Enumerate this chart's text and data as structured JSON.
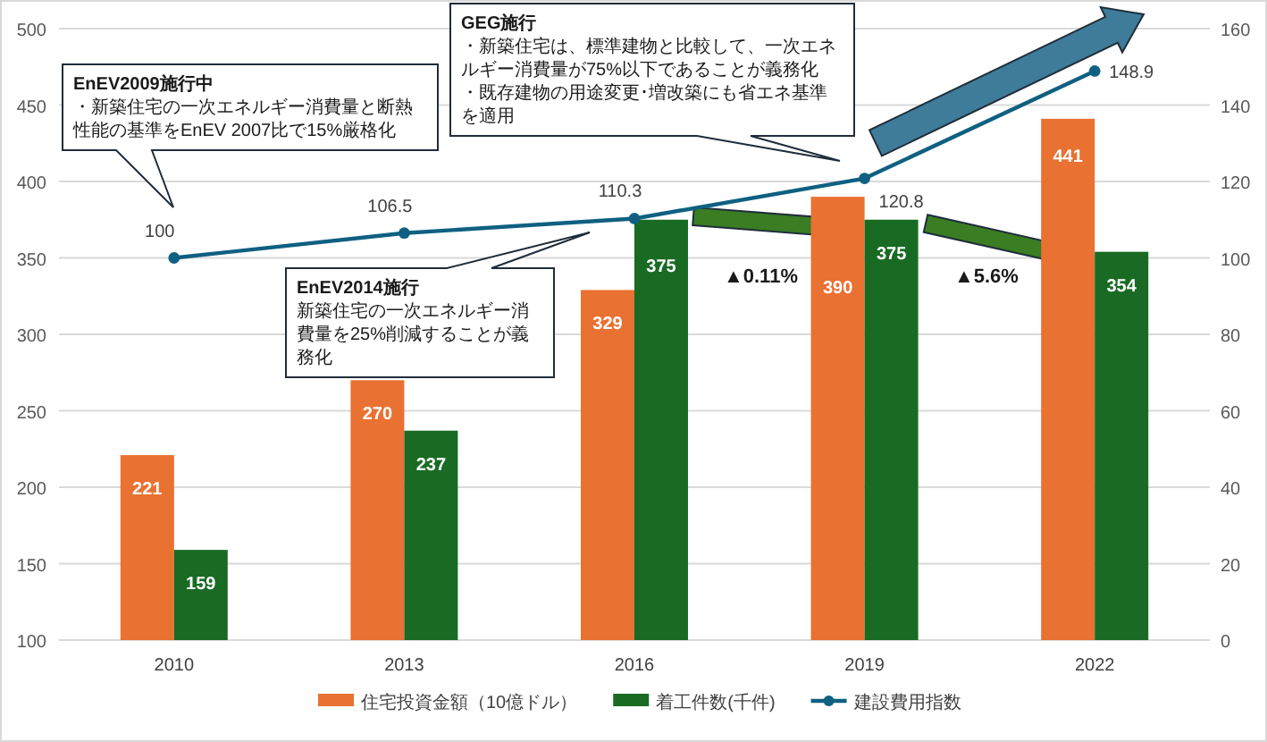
{
  "chart_data": {
    "type": "bar",
    "categories": [
      "2010",
      "2013",
      "2016",
      "2019",
      "2022"
    ],
    "series": [
      {
        "name": "住宅投資金額（10億ドル）",
        "color": "#e97132",
        "values": [
          221,
          270,
          329,
          390,
          441
        ]
      },
      {
        "name": "着工件数(千件)",
        "color": "#196b24",
        "values": [
          159,
          237,
          375,
          375,
          354
        ]
      },
      {
        "name": "建設費用指数",
        "type": "line",
        "axis": "y2",
        "color": "#0f6081",
        "marker": "circle",
        "values": [
          100,
          106.5,
          110.3,
          120.8,
          148.9
        ]
      }
    ],
    "ylim": [
      100,
      500
    ],
    "yticks": [
      100,
      150,
      200,
      250,
      300,
      350,
      400,
      450,
      500
    ],
    "y2lim": [
      0,
      160
    ],
    "y2ticks": [
      0,
      20,
      40,
      60,
      80,
      100,
      120,
      140,
      160
    ],
    "data_labels": true,
    "grid": "y",
    "legend": "bottom",
    "annotations": [
      "EnEV2009施行中",
      "・新築住宅の一次エネルギー消費量と断熱性能の基準をEnEV 2007比で15%厳格化",
      "EnEV2014施行",
      "新築住宅の一次エネルギー消費量を25%削減することが義務化",
      "GEG施行",
      "・新築住宅は、標準建物と比較して、一次エネルギー消費量が75%以下であることが義務化",
      "・既存建物の用途変更･増改築にも省エネ基準を適用",
      "▲0.11%",
      "▲5.6%"
    ]
  }
}
